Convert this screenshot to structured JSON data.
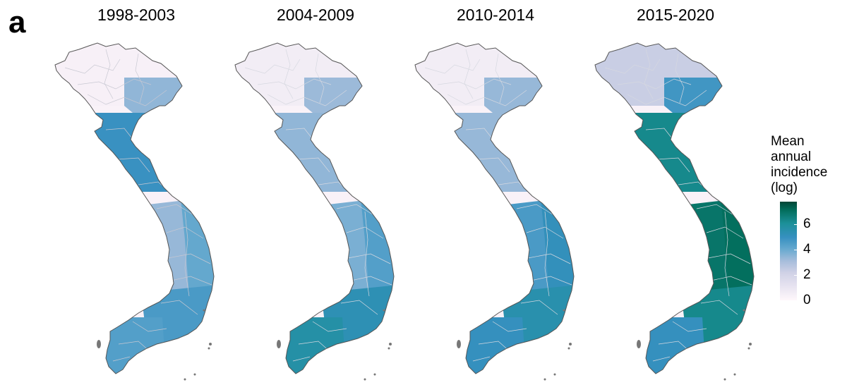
{
  "figure": {
    "panel_letter": "a",
    "periods": [
      "1998-2003",
      "2004-2009",
      "2010-2014",
      "2015-2020"
    ],
    "maps": [
      {
        "period": "1998-2003",
        "regional_level": {
          "north_highlands": 0.2,
          "red_river_delta": 2.6,
          "north_central_coast": 4.4,
          "south_central_coast": 3.4,
          "central_highlands": 2.5,
          "southeast": 4.0,
          "mekong_delta": 3.8
        }
      },
      {
        "period": "2004-2009",
        "regional_level": {
          "north_highlands": 0.3,
          "red_river_delta": 2.4,
          "north_central_coast": 2.6,
          "south_central_coast": 3.8,
          "central_highlands": 3.0,
          "southeast": 4.8,
          "mekong_delta": 5.2
        }
      },
      {
        "period": "2010-2014",
        "regional_level": {
          "north_highlands": 0.3,
          "red_river_delta": 2.5,
          "north_central_coast": 2.5,
          "south_central_coast": 4.6,
          "central_highlands": 4.0,
          "southeast": 5.0,
          "mekong_delta": 4.5
        }
      },
      {
        "period": "2015-2020",
        "regional_level": {
          "north_highlands": 1.3,
          "red_river_delta": 4.2,
          "north_central_coast": 5.8,
          "south_central_coast": 6.6,
          "central_highlands": 6.4,
          "southeast": 5.8,
          "mekong_delta": 4.5
        }
      }
    ]
  },
  "legend": {
    "title_lines": [
      "Mean",
      "annual",
      "incidence",
      "(log)"
    ],
    "scale_min": 0,
    "scale_max": 7.8,
    "ticks": [
      "0",
      "2",
      "4",
      "6"
    ],
    "colors": [
      "#fff7fb",
      "#d0d1e6",
      "#a6bddb",
      "#67a9cf",
      "#3690c0",
      "#1c9099",
      "#016c59",
      "#014636"
    ]
  },
  "colors": {
    "border": "#555555",
    "province_line": "#c8c8d2",
    "background": "#ffffff"
  }
}
